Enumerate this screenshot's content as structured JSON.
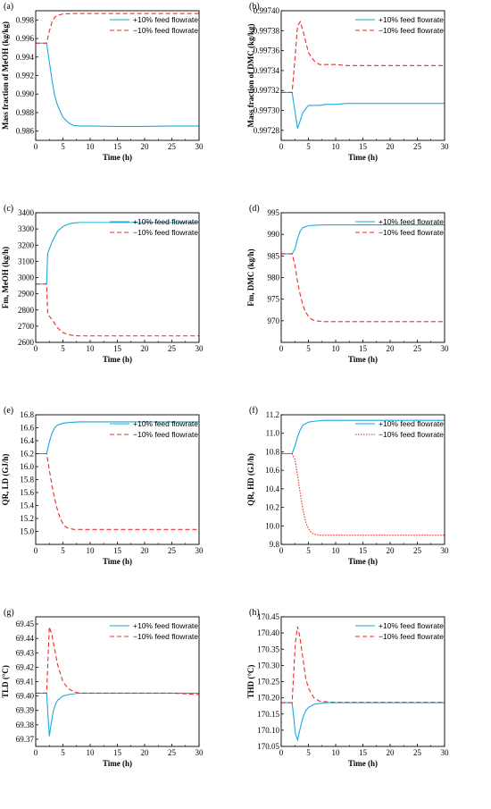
{
  "colors": {
    "plus": "#1ba7e0",
    "minus": "#ee2a24",
    "axis": "#000000"
  },
  "chart_data": [
    {
      "id": "a",
      "type": "line",
      "tag": "(a)",
      "xlabel": "Time (h)",
      "ylabel": "Mass fraction of MeOH (kg/kg)",
      "xlim": [
        0,
        30
      ],
      "ylim": [
        0.985,
        0.999
      ],
      "xticks": [
        0,
        5,
        10,
        15,
        20,
        25,
        30
      ],
      "xtick_labels": [
        "0",
        "5",
        "10",
        "15",
        "20",
        "25",
        "30"
      ],
      "yticks": [
        0.986,
        0.988,
        0.99,
        0.992,
        0.994,
        0.996,
        0.998
      ],
      "ytick_labels": [
        "0.986",
        "0.988",
        "0.990",
        "0.992",
        "0.994",
        "0.996",
        "0.998"
      ],
      "legend": "top-right",
      "series": [
        {
          "name": "+10% feed flowrate",
          "style": "solid",
          "color": "#1ba7e0",
          "x": [
            0,
            2,
            2.5,
            3,
            3.5,
            4,
            5,
            6,
            7,
            8,
            10,
            15,
            20,
            25,
            30
          ],
          "y": [
            0.9955,
            0.9955,
            0.9935,
            0.9915,
            0.9898,
            0.9888,
            0.9875,
            0.9869,
            0.9866,
            0.98655,
            0.98655,
            0.9865,
            0.9865,
            0.98655,
            0.98655
          ]
        },
        {
          "name": "−10% feed flowrate",
          "style": "dashed",
          "color": "#ee2a24",
          "x": [
            0,
            2,
            2.5,
            3,
            3.5,
            4,
            5,
            6,
            7,
            10,
            15,
            20,
            25,
            30
          ],
          "y": [
            0.9955,
            0.9955,
            0.9968,
            0.9978,
            0.9983,
            0.9985,
            0.99865,
            0.99868,
            0.9987,
            0.9987,
            0.9987,
            0.9987,
            0.9987,
            0.9987
          ]
        }
      ]
    },
    {
      "id": "b",
      "type": "line",
      "tag": "(b)",
      "xlabel": "Time (h)",
      "ylabel": "Mass fraction of DMC (kg/kg)",
      "xlim": [
        0,
        30
      ],
      "ylim": [
        0.99727,
        0.9974
      ],
      "xticks": [
        0,
        5,
        10,
        15,
        20,
        25,
        30
      ],
      "xtick_labels": [
        "0",
        "5",
        "10",
        "15",
        "20",
        "25",
        "30"
      ],
      "yticks": [
        0.99728,
        0.9973,
        0.99732,
        0.99734,
        0.99736,
        0.99738,
        0.9974
      ],
      "ytick_labels": [
        "0.99728",
        "0.99730",
        "0.99732",
        "0.99734",
        "0.99736",
        "0.99738",
        "0.99740"
      ],
      "legend": "top-right",
      "series": [
        {
          "name": "+10% feed flowrate",
          "style": "solid",
          "color": "#1ba7e0",
          "x": [
            0,
            2,
            2.5,
            3,
            3.5,
            4,
            5,
            6,
            7,
            8,
            10,
            12,
            15,
            20,
            25,
            30
          ],
          "y": [
            0.997318,
            0.997318,
            0.9973,
            0.997282,
            0.99729,
            0.997298,
            0.997305,
            0.997305,
            0.997305,
            0.997306,
            0.997306,
            0.997307,
            0.997307,
            0.997307,
            0.997307,
            0.997307
          ]
        },
        {
          "name": "−10% feed flowrate",
          "style": "dashed",
          "color": "#ee2a24",
          "x": [
            0,
            2,
            2.5,
            3,
            3.5,
            4,
            5,
            6,
            7,
            8,
            10,
            12,
            15,
            20,
            25,
            30
          ],
          "y": [
            0.997318,
            0.997318,
            0.99735,
            0.997385,
            0.997389,
            0.99738,
            0.997358,
            0.99735,
            0.997346,
            0.997346,
            0.997346,
            0.997345,
            0.997345,
            0.997345,
            0.997345,
            0.997345
          ]
        }
      ]
    },
    {
      "id": "c",
      "type": "line",
      "tag": "(c)",
      "xlabel": "Time (h)",
      "ylabel": "Fm,  MeOH (kg/h)",
      "xlim": [
        0,
        30
      ],
      "ylim": [
        2600,
        3400
      ],
      "xticks": [
        0,
        5,
        10,
        15,
        20,
        25,
        30
      ],
      "xtick_labels": [
        "0",
        "5",
        "10",
        "15",
        "20",
        "25",
        "30"
      ],
      "yticks": [
        2600,
        2700,
        2800,
        2900,
        3000,
        3100,
        3200,
        3300,
        3400
      ],
      "ytick_labels": [
        "2600",
        "2700",
        "2800",
        "2900",
        "3000",
        "3100",
        "3200",
        "3300",
        "3400"
      ],
      "legend": "top-right",
      "series": [
        {
          "name": "+10% feed flowrate",
          "style": "solid",
          "color": "#1ba7e0",
          "x": [
            0,
            2,
            2.2,
            3,
            4,
            5,
            6,
            7,
            8,
            10,
            15,
            20,
            25,
            30
          ],
          "y": [
            2960,
            2960,
            3150,
            3220,
            3285,
            3315,
            3330,
            3337,
            3340,
            3340,
            3340,
            3340,
            3340,
            3340
          ]
        },
        {
          "name": "−10% feed flowrate",
          "style": "dashed",
          "color": "#ee2a24",
          "x": [
            0,
            2,
            2.2,
            3,
            4,
            5,
            6,
            7,
            8,
            10,
            15,
            20,
            25,
            30
          ],
          "y": [
            2960,
            2960,
            2775,
            2740,
            2690,
            2660,
            2648,
            2642,
            2640,
            2640,
            2640,
            2640,
            2640,
            2640
          ]
        }
      ]
    },
    {
      "id": "d",
      "type": "line",
      "tag": "(d)",
      "xlabel": "Time (h)",
      "ylabel": "Fm,  DMC (kg/h)",
      "xlim": [
        0,
        30
      ],
      "ylim": [
        965,
        995
      ],
      "xticks": [
        0,
        5,
        10,
        15,
        20,
        25,
        30
      ],
      "xtick_labels": [
        "0",
        "5",
        "10",
        "15",
        "20",
        "25",
        "30"
      ],
      "yticks": [
        970,
        975,
        980,
        985,
        990,
        995
      ],
      "ytick_labels": [
        "970",
        "975",
        "980",
        "985",
        "990",
        "995"
      ],
      "legend": "top-right",
      "series": [
        {
          "name": "+10% feed flowrate",
          "style": "solid",
          "color": "#1ba7e0",
          "x": [
            0,
            2,
            2.5,
            3,
            3.5,
            4,
            5,
            6,
            8,
            10,
            15,
            20,
            25,
            30
          ],
          "y": [
            985.5,
            985.5,
            986.5,
            989,
            990.8,
            991.6,
            992.0,
            992.1,
            992.2,
            992.2,
            992.2,
            992.2,
            992.2,
            992.2
          ]
        },
        {
          "name": "−10% feed flowrate",
          "style": "dashed",
          "color": "#ee2a24",
          "x": [
            0,
            2,
            2.5,
            3,
            3.5,
            4,
            4.5,
            5,
            5.5,
            6,
            7,
            8,
            10,
            15,
            20,
            25,
            30
          ],
          "y": [
            985.5,
            985.5,
            983,
            979,
            976,
            973.5,
            972,
            971,
            970.4,
            970.1,
            969.9,
            969.8,
            969.8,
            969.8,
            969.8,
            969.8,
            969.8
          ]
        }
      ]
    },
    {
      "id": "e",
      "type": "line",
      "tag": "(e)",
      "xlabel": "Time (h)",
      "ylabel": "QR, LD (GJ/h)",
      "xlim": [
        0,
        30
      ],
      "ylim": [
        14.8,
        16.8
      ],
      "xticks": [
        0,
        5,
        10,
        15,
        20,
        25,
        30
      ],
      "xtick_labels": [
        "0",
        "5",
        "10",
        "15",
        "20",
        "25",
        "30"
      ],
      "yticks": [
        15.0,
        15.2,
        15.4,
        15.6,
        15.8,
        16.0,
        16.2,
        16.4,
        16.6,
        16.8
      ],
      "ytick_labels": [
        "15.0",
        "15.2",
        "15.4",
        "15.6",
        "15.8",
        "16.0",
        "16.2",
        "16.4",
        "16.6",
        "16.8"
      ],
      "legend": "top-right",
      "series": [
        {
          "name": "+10% feed flowrate",
          "style": "solid",
          "color": "#1ba7e0",
          "x": [
            0,
            2,
            2.5,
            3,
            3.5,
            4,
            5,
            6,
            8,
            10,
            15,
            20,
            25,
            30
          ],
          "y": [
            16.2,
            16.2,
            16.38,
            16.52,
            16.6,
            16.64,
            16.67,
            16.68,
            16.69,
            16.69,
            16.69,
            16.69,
            16.69,
            16.69
          ]
        },
        {
          "name": "−10% feed flowrate",
          "style": "dashed",
          "color": "#ee2a24",
          "x": [
            0,
            2,
            2.5,
            3,
            3.5,
            4,
            4.5,
            5,
            5.5,
            6,
            7,
            8,
            10,
            15,
            20,
            25,
            30
          ],
          "y": [
            16.2,
            16.2,
            15.95,
            15.7,
            15.5,
            15.33,
            15.2,
            15.12,
            15.07,
            15.05,
            15.03,
            15.03,
            15.03,
            15.03,
            15.03,
            15.03,
            15.03
          ]
        }
      ]
    },
    {
      "id": "f",
      "type": "line",
      "tag": "(f)",
      "xlabel": "Time (h)",
      "ylabel": "QR, HD (GJ/h)",
      "xlim": [
        0,
        30
      ],
      "ylim": [
        9.8,
        11.2
      ],
      "xticks": [
        0,
        5,
        10,
        15,
        20,
        25,
        30
      ],
      "xtick_labels": [
        "0",
        "5",
        "10",
        "15",
        "20",
        "25",
        "30"
      ],
      "yticks": [
        9.8,
        10.0,
        10.2,
        10.4,
        10.6,
        10.8,
        11.0,
        11.2
      ],
      "ytick_labels": [
        "9.8",
        "10.0",
        "10.2",
        "10.4",
        "10.6",
        "10.8",
        "11.0",
        "11.2"
      ],
      "legend": "top-right",
      "series": [
        {
          "name": "+10% feed flowrate",
          "style": "solid",
          "color": "#1ba7e0",
          "x": [
            0,
            2,
            2.5,
            3,
            3.5,
            4,
            5,
            6,
            8,
            10,
            15,
            20,
            25,
            30
          ],
          "y": [
            10.78,
            10.78,
            10.86,
            10.96,
            11.04,
            11.09,
            11.12,
            11.13,
            11.14,
            11.14,
            11.14,
            11.14,
            11.14,
            11.14
          ]
        },
        {
          "name": "−10% feed flowrate",
          "style": "dotted",
          "color": "#ee2a24",
          "x": [
            0,
            2,
            2.5,
            3,
            3.5,
            4,
            4.5,
            5,
            5.5,
            6,
            7,
            8,
            10,
            15,
            20,
            25,
            30
          ],
          "y": [
            10.78,
            10.78,
            10.72,
            10.55,
            10.35,
            10.17,
            10.04,
            9.97,
            9.93,
            9.91,
            9.9,
            9.9,
            9.9,
            9.9,
            9.9,
            9.9,
            9.9
          ]
        }
      ]
    },
    {
      "id": "g",
      "type": "line",
      "tag": "(g)",
      "xlabel": "Time (h)",
      "ylabel": "TLD (°C)",
      "xlim": [
        0,
        30
      ],
      "ylim": [
        69.365,
        69.455
      ],
      "xticks": [
        0,
        5,
        10,
        15,
        20,
        25,
        30
      ],
      "xtick_labels": [
        "0",
        "5",
        "10",
        "15",
        "20",
        "25",
        "30"
      ],
      "yticks": [
        69.37,
        69.38,
        69.39,
        69.4,
        69.41,
        69.42,
        69.43,
        69.44,
        69.45
      ],
      "ytick_labels": [
        "69.37",
        "69.38",
        "69.39",
        "69.40",
        "69.41",
        "69.42",
        "69.43",
        "69.44",
        "69.45"
      ],
      "legend": "top-right",
      "series": [
        {
          "name": "+10% feed flowrate",
          "style": "solid",
          "color": "#1ba7e0",
          "x": [
            0,
            2,
            2.2,
            2.5,
            2.8,
            3.2,
            3.6,
            4,
            5,
            6,
            8,
            10,
            15,
            20,
            25,
            30
          ],
          "y": [
            69.402,
            69.402,
            69.39,
            69.372,
            69.38,
            69.389,
            69.394,
            69.397,
            69.4,
            69.401,
            69.402,
            69.402,
            69.402,
            69.402,
            69.402,
            69.402
          ]
        },
        {
          "name": "−10% feed flowrate",
          "style": "dashed",
          "color": "#ee2a24",
          "x": [
            0,
            2,
            2.2,
            2.5,
            3,
            3.5,
            4,
            5,
            6,
            7,
            8,
            10,
            15,
            20,
            25,
            30
          ],
          "y": [
            69.402,
            69.402,
            69.42,
            69.448,
            69.442,
            69.432,
            69.422,
            69.41,
            69.405,
            69.403,
            69.402,
            69.402,
            69.402,
            69.402,
            69.402,
            69.401
          ]
        }
      ]
    },
    {
      "id": "h",
      "type": "line",
      "tag": "(h)",
      "xlabel": "Time (h)",
      "ylabel": "THD (°C)",
      "xlim": [
        0,
        30
      ],
      "ylim": [
        170.05,
        170.45
      ],
      "xticks": [
        0,
        5,
        10,
        15,
        20,
        25,
        30
      ],
      "xtick_labels": [
        "0",
        "5",
        "10",
        "15",
        "20",
        "25",
        "30"
      ],
      "yticks": [
        170.05,
        170.1,
        170.15,
        170.2,
        170.25,
        170.3,
        170.35,
        170.4,
        170.45
      ],
      "ytick_labels": [
        "170.05",
        "170.10",
        "170.15",
        "170.20",
        "170.25",
        "170.30",
        "170.35",
        "170.40",
        "170.45"
      ],
      "legend": "top-right",
      "series": [
        {
          "name": "+10% feed flowrate",
          "style": "solid",
          "color": "#1ba7e0",
          "x": [
            0,
            2,
            2.3,
            2.6,
            3,
            3.4,
            4,
            4.5,
            5,
            6,
            8,
            10,
            15,
            20,
            25,
            30
          ],
          "y": [
            170.185,
            170.185,
            170.14,
            170.09,
            170.07,
            170.1,
            170.14,
            170.16,
            170.17,
            170.18,
            170.185,
            170.185,
            170.185,
            170.185,
            170.185,
            170.185
          ]
        },
        {
          "name": "−10% feed flowrate",
          "style": "dashed",
          "color": "#ee2a24",
          "x": [
            0,
            2,
            2.3,
            2.6,
            3,
            3.4,
            4,
            4.5,
            5,
            6,
            7,
            8,
            10,
            15,
            20,
            25,
            30
          ],
          "y": [
            170.185,
            170.185,
            170.28,
            170.37,
            170.42,
            170.39,
            170.32,
            170.26,
            170.23,
            170.2,
            170.19,
            170.188,
            170.186,
            170.186,
            170.186,
            170.186,
            170.186
          ]
        }
      ]
    }
  ]
}
